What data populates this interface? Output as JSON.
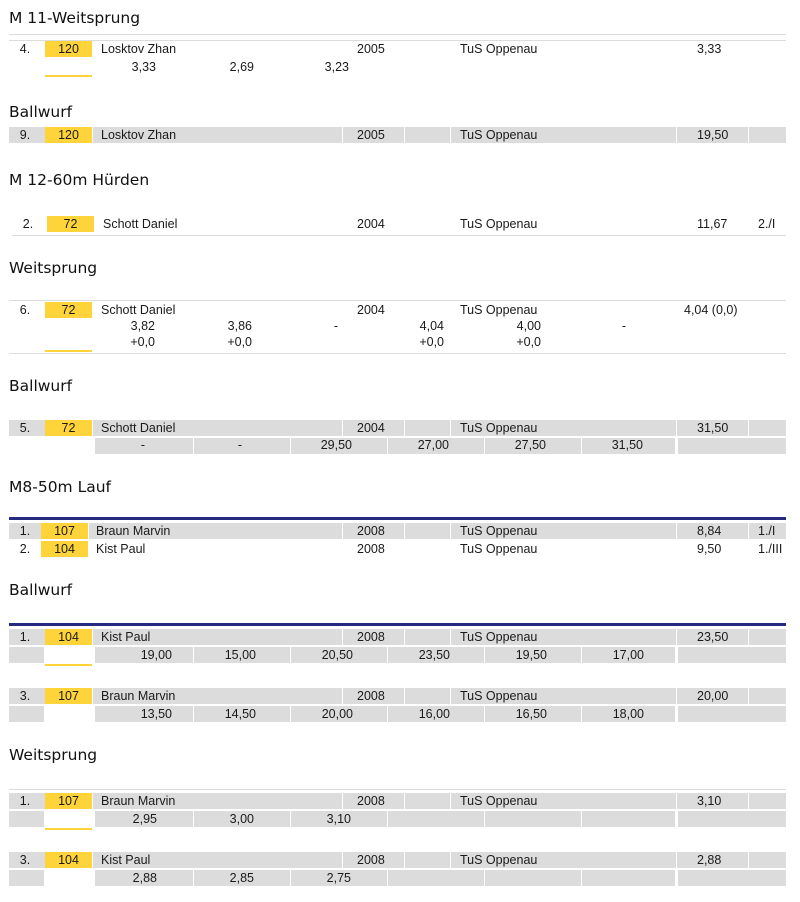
{
  "sections": [
    {
      "title": "M 11-Weitsprung",
      "rows": [
        {
          "rank": "4.",
          "bib": "120",
          "name": "Losktov Zhan",
          "year": "2005",
          "club": "TuS Oppenau",
          "result": "3,33",
          "extra": "",
          "attempts": [
            "3,33",
            "2,69",
            "3,23"
          ]
        }
      ]
    },
    {
      "title": "Ballwurf",
      "rows": [
        {
          "rank": "9.",
          "bib": "120",
          "name": "Losktov Zhan",
          "year": "2005",
          "club": "TuS Oppenau",
          "result": "19,50",
          "extra": ""
        }
      ]
    },
    {
      "title": "M 12-60m Hürden",
      "rows": [
        {
          "rank": "2.",
          "bib": "72",
          "name": "Schott Daniel",
          "year": "2004",
          "club": "TuS Oppenau",
          "result": "11,67",
          "extra": "2./I"
        }
      ]
    },
    {
      "title": "Weitsprung",
      "rows": [
        {
          "rank": "6.",
          "bib": "72",
          "name": "Schott Daniel",
          "year": "2004",
          "club": "TuS Oppenau",
          "result": "4,04 (0,0)",
          "extra": "",
          "attempts": [
            "3,82",
            "3,86",
            "-",
            "4,04",
            "4,00",
            "-"
          ],
          "winds": [
            "+0,0",
            "+0,0",
            "",
            "+0,0",
            "+0,0",
            ""
          ]
        }
      ]
    },
    {
      "title": "Ballwurf",
      "rows": [
        {
          "rank": "5.",
          "bib": "72",
          "name": "Schott Daniel",
          "year": "2004",
          "club": "TuS Oppenau",
          "result": "31,50",
          "extra": "",
          "attempts": [
            "-",
            "-",
            "29,50",
            "27,00",
            "27,50",
            "31,50"
          ]
        }
      ]
    },
    {
      "title": "M8-50m Lauf",
      "rows": [
        {
          "rank": "1.",
          "bib": "107",
          "name": "Braun Marvin",
          "year": "2008",
          "club": "TuS Oppenau",
          "result": "8,84",
          "extra": "1./I"
        },
        {
          "rank": "2.",
          "bib": "104",
          "name": "Kist Paul",
          "year": "2008",
          "club": "TuS Oppenau",
          "result": "9,50",
          "extra": "1./III"
        }
      ]
    },
    {
      "title": "Ballwurf",
      "rows": [
        {
          "rank": "1.",
          "bib": "104",
          "name": "Kist Paul",
          "year": "2008",
          "club": "TuS Oppenau",
          "result": "23,50",
          "extra": "",
          "attempts": [
            "19,00",
            "15,00",
            "20,50",
            "23,50",
            "19,50",
            "17,00"
          ]
        },
        {
          "rank": "3.",
          "bib": "107",
          "name": "Braun Marvin",
          "year": "2008",
          "club": "TuS Oppenau",
          "result": "20,00",
          "extra": "",
          "attempts": [
            "13,50",
            "14,50",
            "20,00",
            "16,00",
            "16,50",
            "18,00"
          ]
        }
      ]
    },
    {
      "title": "Weitsprung",
      "rows": [
        {
          "rank": "1.",
          "bib": "107",
          "name": "Braun Marvin",
          "year": "2008",
          "club": "TuS Oppenau",
          "result": "3,10",
          "extra": "",
          "attempts": [
            "2,95",
            "3,00",
            "3,10"
          ]
        },
        {
          "rank": "3.",
          "bib": "104",
          "name": "Kist Paul",
          "year": "2008",
          "club": "TuS Oppenau",
          "result": "2,88",
          "extra": "",
          "attempts": [
            "2,88",
            "2,85",
            "2,75"
          ]
        }
      ]
    }
  ]
}
